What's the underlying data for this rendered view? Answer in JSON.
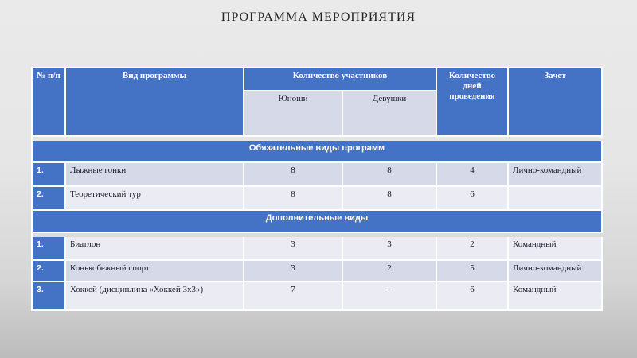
{
  "slide": {
    "title": "ПРОГРАММА МЕРОПРИЯТИЯ"
  },
  "colors": {
    "header_blue": "#4472C4",
    "row_dark": "#D6DAE8",
    "row_light": "#EAEBF3",
    "border": "#FFFFFF",
    "text_dark": "#1F1F2E",
    "header_text": "#FFFFFF",
    "background_top": "#EAEAEA",
    "background_bottom": "#BCBCBC"
  },
  "table": {
    "headers": {
      "num": "№ п/п",
      "program": "Вид программы",
      "participants": "Количество участников",
      "boys": "Юноши",
      "girls": "Девушки",
      "days": "Количество дней проведения",
      "credit": "Зачет"
    },
    "sections": [
      {
        "title": "Обязательные виды программ",
        "rows": [
          {
            "num": "1.",
            "program": "Лыжные гонки",
            "boys": "8",
            "girls": "8",
            "days": "4",
            "credit": "Лично-командный"
          },
          {
            "num": "2.",
            "program": "Теоретический тур",
            "boys": "8",
            "girls": "8",
            "days": "6",
            "credit": ""
          }
        ]
      },
      {
        "title": "Дополнительные виды",
        "rows": [
          {
            "num": "1.",
            "program": "Биатлон",
            "boys": "3",
            "girls": "3",
            "days": "2",
            "credit": "Командный"
          },
          {
            "num": "2.",
            "program": "Конькобежный спорт",
            "boys": "3",
            "girls": "2",
            "days": "5",
            "credit": "Лично-командный"
          },
          {
            "num": "3.",
            "program": "Хоккей (дисциплина «Хоккей 3х3»)",
            "boys": "7",
            "girls": "-",
            "days": "6",
            "credit": "Командный"
          }
        ]
      }
    ]
  }
}
